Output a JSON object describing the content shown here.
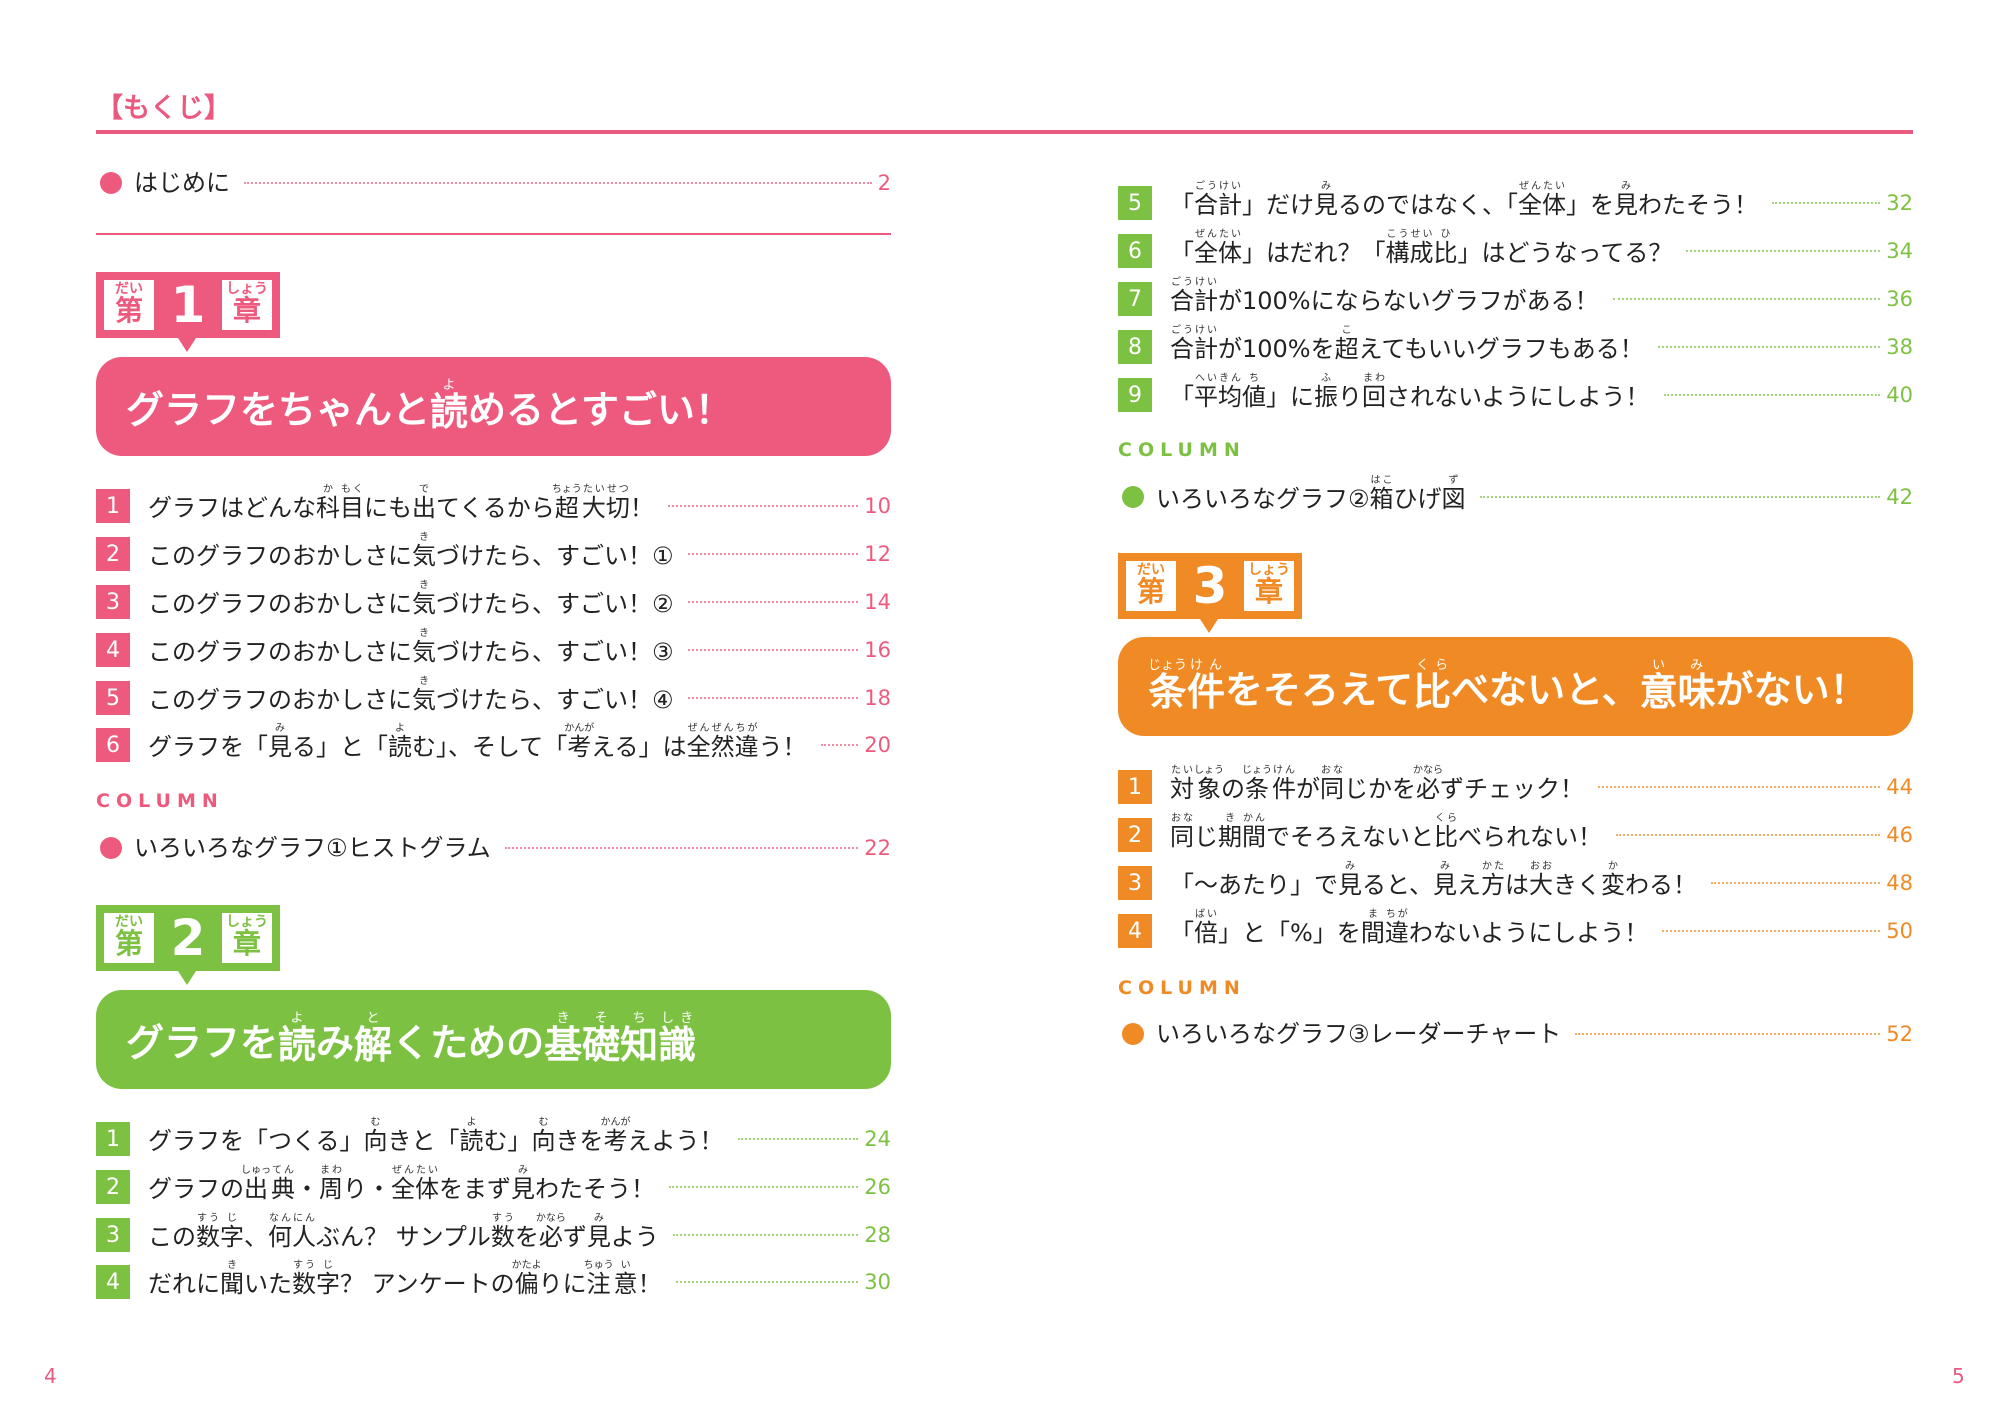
{
  "colors": {
    "pink": "#ee5a7e",
    "green": "#7dc142",
    "orange": "#f08a24"
  },
  "header": {
    "title": "【もくじ】"
  },
  "intro": {
    "title": "はじめに",
    "page": "2"
  },
  "chapters": [
    {
      "prefix": "{第|だい}",
      "number": "1",
      "suffix": "{章|しょう}",
      "title": "グラフをちゃんと{読|よ}めるとすごい！",
      "color": "pink",
      "items": [
        {
          "n": "1",
          "title": "グラフはどんな{科|か}{目|もく}にも{出|で}てくるから{超|ちょう}{大|たい}{切|せつ}！",
          "page": "10"
        },
        {
          "n": "2",
          "title": "このグラフのおかしさに{気|き}づけたら、すごい！①",
          "page": "12"
        },
        {
          "n": "3",
          "title": "このグラフのおかしさに{気|き}づけたら、すごい！②",
          "page": "14"
        },
        {
          "n": "4",
          "title": "このグラフのおかしさに{気|き}づけたら、すごい！③",
          "page": "16"
        },
        {
          "n": "5",
          "title": "このグラフのおかしさに{気|き}づけたら、すごい！④",
          "page": "18"
        },
        {
          "n": "6",
          "title": "グラフを「{見|み}る」と「{読|よ}む」、そして「{考|かんが}える」は{全|ぜん}{然|ぜん}{違|ちが}う！",
          "page": "20"
        }
      ],
      "column": {
        "label": "COLUMN",
        "title": "いろいろなグラフ①ヒストグラム",
        "page": "22"
      }
    },
    {
      "prefix": "{第|だい}",
      "number": "2",
      "suffix": "{章|しょう}",
      "title": "グラフを{読|よ}み{解|と}くための{基|き}{礎|そ}{知|ち}{識|しき}",
      "color": "green",
      "items": [
        {
          "n": "1",
          "title": "グラフを「つくる」{向|む}きと「{読|よ}む」{向|む}きを{考|かんが}えよう！",
          "page": "24"
        },
        {
          "n": "2",
          "title": "グラフの{出|しゅっ}{典|てん}・{周|まわ}り・{全|ぜん}{体|たい}をまず{見|み}わたそう！",
          "page": "26"
        },
        {
          "n": "3",
          "title": "この{数|すう}{字|じ}、{何|なん}{人|にん}ぶん？ サンプル{数|すう}を{必|かなら}ず{見|み}よう",
          "page": "28"
        },
        {
          "n": "4",
          "title": "だれに{聞|き}いた{数|すう}{字|じ}？ アンケートの{偏|かたよ}りに{注|ちゅう}{意|い}！",
          "page": "30"
        },
        {
          "n": "5",
          "title": "「{合|ごう}{計|けい}」だけ{見|み}るのではなく、「{全|ぜん}{体|たい}」を{見|み}わたそう！",
          "page": "32"
        },
        {
          "n": "6",
          "title": "「{全|ぜん}{体|たい}」はだれ？「{構|こう}{成|せい}{比|ひ}」はどうなってる？",
          "page": "34"
        },
        {
          "n": "7",
          "title": "{合|ごう}{計|けい}が100%にならないグラフがある！",
          "page": "36"
        },
        {
          "n": "8",
          "title": "{合|ごう}{計|けい}が100%を{超|こ}えてもいいグラフもある！",
          "page": "38"
        },
        {
          "n": "9",
          "title": "「{平|へい}{均|きん}{値|ち}」に{振|ふ}り{回|まわ}されないようにしよう！",
          "page": "40"
        }
      ],
      "column": {
        "label": "COLUMN",
        "title": "いろいろなグラフ②{箱|はこ}ひげ{図|ず}",
        "page": "42"
      }
    },
    {
      "prefix": "{第|だい}",
      "number": "3",
      "suffix": "{章|しょう}",
      "title": "{条|じょう}{件|けん}をそろえて{比|くら}べないと、{意|い}{味|み}がない！",
      "color": "orange",
      "items": [
        {
          "n": "1",
          "title": "{対|たい}{象|しょう}の{条|じょう}{件|けん}が{同|おな}じかを{必|かなら}ずチェック！",
          "page": "44"
        },
        {
          "n": "2",
          "title": "{同|おな}じ{期|き}{間|かん}でそろえないと{比|くら}べられない！",
          "page": "46"
        },
        {
          "n": "3",
          "title": "「～あたり」で{見|み}ると、{見|み}え{方|かた}は{大|おお}きく{変|か}わる！",
          "page": "48"
        },
        {
          "n": "4",
          "title": "「{倍|ばい}」と「%」を{間|ま}{違|ちが}わないようにしよう！",
          "page": "50"
        }
      ],
      "column": {
        "label": "COLUMN",
        "title": "いろいろなグラフ③レーダーチャート",
        "page": "52"
      }
    }
  ],
  "page_numbers": {
    "left": "4",
    "right": "5"
  }
}
